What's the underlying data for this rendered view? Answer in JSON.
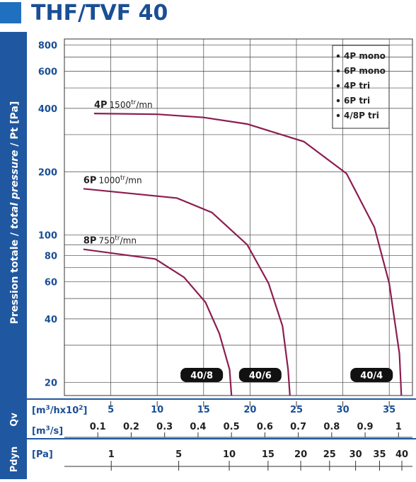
{
  "title": "THF/TVF 40",
  "y_axis_label": [
    "Pression totale / ",
    "total pressure",
    " / Pt [Pa]"
  ],
  "chart_data": {
    "type": "line",
    "y_scale": "log",
    "grid": true,
    "ylim": [
      17.3,
      854
    ],
    "yticks": [
      20,
      40,
      60,
      80,
      100,
      200,
      400,
      600,
      800
    ],
    "y_minor_grid": [
      30,
      50,
      70,
      90,
      300,
      500,
      700
    ],
    "xlim": [
      0,
      37.5
    ],
    "xticks": [
      5,
      10,
      15,
      20,
      25,
      30,
      35
    ],
    "series": [
      {
        "name": "4P",
        "speed": "1500",
        "speed_sup": "tr",
        "speed_unit": "/mn",
        "badge": "40/4",
        "color": "#8c1d50",
        "x": [
          3.2,
          10,
          15,
          19.7,
          25.8,
          30.4,
          33.4,
          35,
          36.1,
          36.3
        ],
        "values": [
          378,
          375,
          362,
          337,
          278,
          196,
          109,
          59,
          27.3,
          17.3
        ]
      },
      {
        "name": "6P",
        "speed": "1000",
        "speed_sup": "tr",
        "speed_unit": "/mn",
        "badge": "40/6",
        "color": "#8c1d50",
        "x": [
          2.05,
          12.1,
          15.9,
          19.7,
          22,
          23.5,
          24.1,
          24.3
        ],
        "values": [
          166,
          150,
          128,
          90,
          59,
          37,
          23,
          17.3
        ]
      },
      {
        "name": "8P",
        "speed": "750",
        "speed_sup": "tr",
        "speed_unit": "/mn",
        "badge": "40/8",
        "color": "#8c1d50",
        "x": [
          2.05,
          9.8,
          12.9,
          15.2,
          16.7,
          17.8,
          18.0
        ],
        "values": [
          85.6,
          77,
          63,
          48,
          34,
          23,
          17.3
        ]
      }
    ],
    "legend": [
      "4P mono",
      "6P mono",
      "4P tri",
      "6P tri",
      "4/8P tri"
    ],
    "qv_label": "Qv",
    "qv_unit": [
      "[m",
      "3",
      "/hx10",
      "2",
      "]"
    ],
    "m3s_unit": [
      "[m",
      "3",
      "/s]"
    ],
    "x2lim": [
      0,
      1.0417
    ],
    "x2ticks": [
      0.1,
      0.2,
      0.3,
      0.4,
      0.5,
      0.6,
      0.7,
      0.8,
      0.9,
      1
    ],
    "pdyn_label": "Pdyn",
    "pdyn_unit": "[Pa]",
    "pdyn_scale": "sqrt",
    "pdyn_lim": [
      0.02,
      42.5
    ],
    "pdyn_ticks": [
      1,
      5,
      10,
      15,
      20,
      25,
      30,
      35,
      40
    ]
  }
}
